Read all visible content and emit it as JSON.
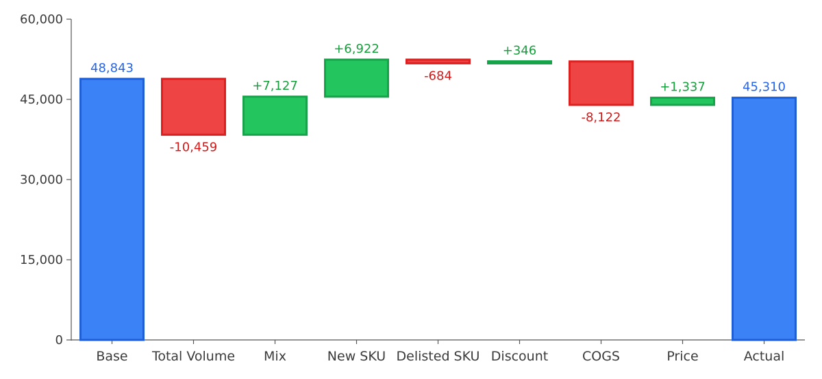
{
  "chart_data": {
    "type": "waterfall",
    "title": "",
    "xlabel": "",
    "ylabel": "",
    "ylim": [
      0,
      60000
    ],
    "yticks": [
      0,
      15000,
      30000,
      45000,
      60000
    ],
    "ytick_labels": [
      "0",
      "15,000",
      "30,000",
      "45,000",
      "60,000"
    ],
    "grid": false,
    "categories": [
      "Base",
      "Total Volume",
      "Mix",
      "New SKU",
      "Delisted SKU",
      "Discount",
      "COGS",
      "Price",
      "Actual"
    ],
    "values": [
      48843,
      -10459,
      7127,
      6922,
      -684,
      346,
      -8122,
      1337,
      45310
    ],
    "kinds": [
      "total",
      "delta",
      "delta",
      "delta",
      "delta",
      "delta",
      "delta",
      "delta",
      "total"
    ],
    "data_labels": [
      "48,843",
      "-10,459",
      "+7,127",
      "+6,922",
      "-684",
      "+346",
      "-8,122",
      "+1,337",
      "45,310"
    ],
    "colors": {
      "total_fill": "#3b82f6",
      "total_stroke": "#1f5fd6",
      "total_text": "#2563eb",
      "increase_fill": "#22c55e",
      "increase_stroke": "#16a34a",
      "increase_text": "#15a03c",
      "decrease_fill": "#ef4444",
      "decrease_stroke": "#dc1f1f",
      "decrease_text": "#d11a1a"
    }
  }
}
